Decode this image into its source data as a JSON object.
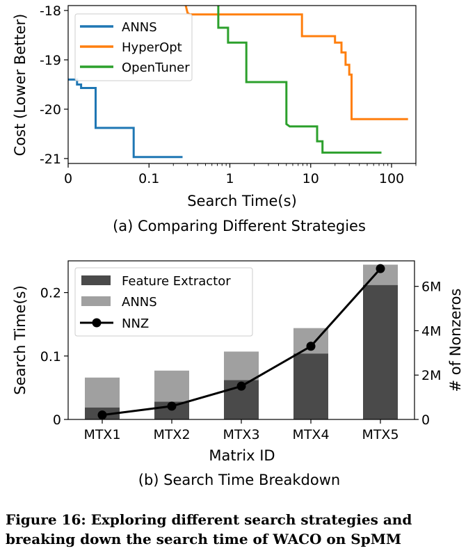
{
  "chart_data": [
    {
      "type": "line",
      "caption": "(a) Comparing Different Strategies",
      "xlabel": "Search Time(s)",
      "ylabel": "Cost (Lower Better)",
      "xscale": "symlog",
      "xlim": [
        0,
        200
      ],
      "ylim": [
        -21.1,
        -17.9
      ],
      "xticks": [
        0,
        0.1,
        1,
        10,
        100
      ],
      "xtick_labels": [
        "0",
        "0.1",
        "1",
        "10",
        "100"
      ],
      "yticks": [
        -18,
        -19,
        -20,
        -21
      ],
      "ytick_labels": [
        "-18",
        "-19",
        "-20",
        "-21"
      ],
      "grid": false,
      "legend_position": "upper-left",
      "series": [
        {
          "name": "ANNS",
          "color": "#1f77b4",
          "points": [
            [
              0,
              -19.4
            ],
            [
              0.011,
              -19.4
            ],
            [
              0.011,
              -19.5
            ],
            [
              0.016,
              -19.5
            ],
            [
              0.016,
              -19.57
            ],
            [
              0.034,
              -19.57
            ],
            [
              0.034,
              -20.38
            ],
            [
              0.081,
              -20.38
            ],
            [
              0.081,
              -20.97
            ],
            [
              0.26,
              -20.97
            ]
          ]
        },
        {
          "name": "HyperOpt",
          "color": "#ff7f0e",
          "points": [
            [
              0.28,
              -17.85
            ],
            [
              0.3,
              -18.05
            ],
            [
              0.32,
              -18.08
            ],
            [
              7.8,
              -18.08
            ],
            [
              7.8,
              -18.52
            ],
            [
              20,
              -18.52
            ],
            [
              20,
              -18.65
            ],
            [
              24,
              -18.65
            ],
            [
              24,
              -18.85
            ],
            [
              27,
              -18.85
            ],
            [
              27,
              -19.1
            ],
            [
              30,
              -19.1
            ],
            [
              30,
              -19.3
            ],
            [
              32,
              -19.3
            ],
            [
              32,
              -20.2
            ],
            [
              160,
              -20.2
            ]
          ]
        },
        {
          "name": "OpenTuner",
          "color": "#2ca02c",
          "points": [
            [
              0.72,
              -17.85
            ],
            [
              0.72,
              -18.35
            ],
            [
              0.95,
              -18.35
            ],
            [
              0.95,
              -18.65
            ],
            [
              1.6,
              -18.65
            ],
            [
              1.6,
              -19.45
            ],
            [
              5.0,
              -19.45
            ],
            [
              5.0,
              -20.3
            ],
            [
              5.5,
              -20.35
            ],
            [
              12,
              -20.35
            ],
            [
              12,
              -20.65
            ],
            [
              14,
              -20.65
            ],
            [
              14,
              -20.88
            ],
            [
              75,
              -20.88
            ]
          ]
        }
      ]
    },
    {
      "type": "bar",
      "caption": "(b) Search Time Breakdown",
      "xlabel": "Matrix ID",
      "ylabel": "Search Time(s)",
      "y2label": "# of Nonzeros",
      "categories": [
        "MTX1",
        "MTX2",
        "MTX3",
        "MTX4",
        "MTX5"
      ],
      "ylim": [
        0,
        0.25
      ],
      "yticks": [
        0,
        0.1,
        0.2
      ],
      "ytick_labels": [
        "0",
        "0.1",
        "0.2"
      ],
      "y2lim": [
        0,
        7150000
      ],
      "y2ticks": [
        0,
        2000000,
        4000000,
        6000000
      ],
      "y2tick_labels": [
        "0",
        "2M",
        "4M",
        "6M"
      ],
      "stacked": true,
      "legend_position": "upper-left",
      "series": [
        {
          "name": "Feature Extractor",
          "color": "#4a4a4a",
          "values": [
            0.019,
            0.028,
            0.062,
            0.104,
            0.212
          ]
        },
        {
          "name": "ANNS",
          "color": "#a0a0a0",
          "values": [
            0.047,
            0.049,
            0.045,
            0.04,
            0.032
          ]
        }
      ],
      "line_series": {
        "name": "NNZ",
        "color": "#000000",
        "axis": "right",
        "values": [
          200000,
          600000,
          1500000,
          3300000,
          6800000
        ]
      }
    }
  ],
  "figure_caption": "Figure 16: Exploring different search strategies and breaking down the search time of WACO on SpMM"
}
